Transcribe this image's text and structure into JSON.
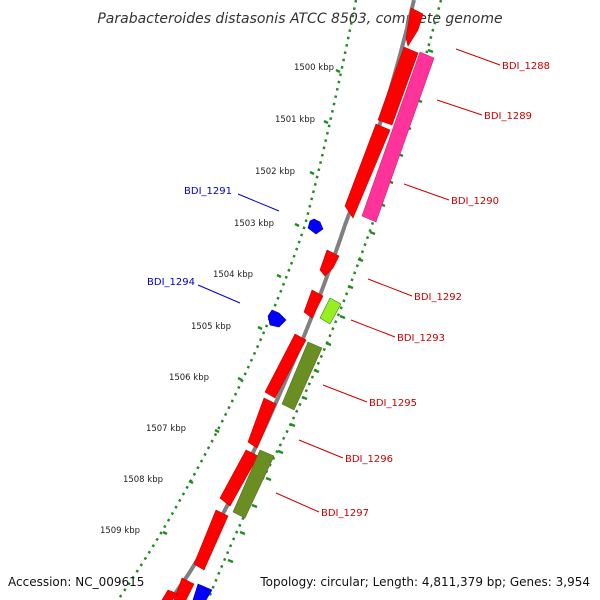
{
  "title": "Parabacteroides distasonis ATCC 8503, complete genome",
  "footer": {
    "accession": "Accession: NC_009615",
    "summary": "Topology: circular; Length: 4,811,379 bp; Genes: 3,954"
  },
  "ticks": [
    "1500 kbp",
    "1501 kbp",
    "1502 kbp",
    "1503 kbp",
    "1504 kbp",
    "1505 kbp",
    "1506 kbp",
    "1507 kbp",
    "1508 kbp",
    "1509 kbp"
  ],
  "colors": {
    "red": "#ff0000",
    "magenta": "#ff3399",
    "olive": "#6b8e23",
    "lime": "#99ee22",
    "blue": "#0000ff",
    "backbone": "#808080",
    "ruler": "#228b22",
    "label_red": "#cc0000",
    "label_blue": "#0000cc"
  },
  "gene_labels": {
    "BDI_1288": "BDI_1288",
    "BDI_1289": "BDI_1289",
    "BDI_1290": "BDI_1290",
    "BDI_1291": "BDI_1291",
    "BDI_1292": "BDI_1292",
    "BDI_1293": "BDI_1293",
    "BDI_1294": "BDI_1294",
    "BDI_1295": "BDI_1295",
    "BDI_1296": "BDI_1296",
    "BDI_1297": "BDI_1297"
  }
}
